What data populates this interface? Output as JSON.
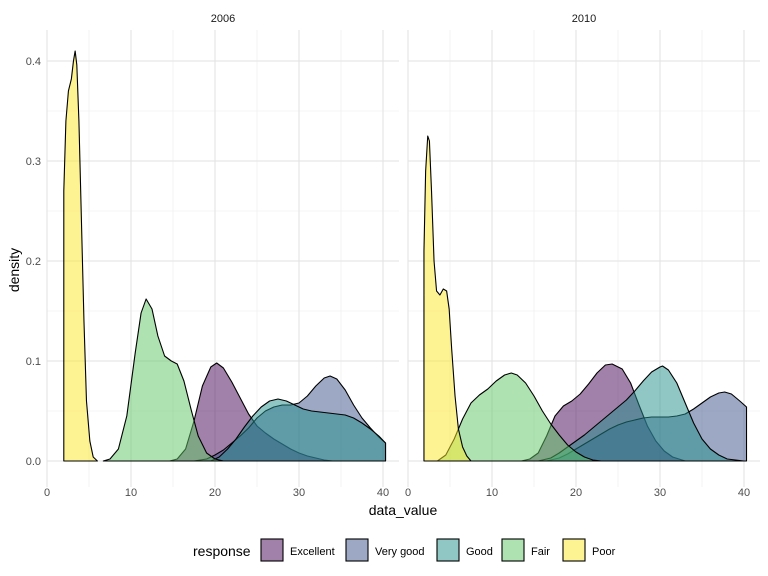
{
  "chart_data": {
    "type": "area",
    "subtype": "faceted density plot",
    "facets": [
      "2006",
      "2010"
    ],
    "xlabel": "data_value",
    "ylabel": "density",
    "xlim": [
      0,
      40
    ],
    "ylim": [
      0,
      0.43
    ],
    "x_ticks": [
      0,
      10,
      20,
      30,
      40
    ],
    "y_ticks": [
      0.0,
      0.1,
      0.2,
      0.3,
      0.4
    ],
    "x_tick_labels": [
      "0",
      "10",
      "20",
      "30",
      "40"
    ],
    "y_tick_labels": [
      "0.0",
      "0.1",
      "0.2",
      "0.3",
      "0.4"
    ],
    "grid": true,
    "legend": {
      "title": "response",
      "position": "bottom",
      "entries": [
        "Excellent",
        "Very good",
        "Good",
        "Fair",
        "Poor"
      ]
    },
    "colors": {
      "Excellent": "#440154",
      "Very good": "#3B528B",
      "Good": "#21908C",
      "Fair": "#5DC863",
      "Poor": "#FDE725"
    },
    "series": {
      "2006": [
        {
          "name": "Excellent",
          "points": [
            [
              14.6,
              0
            ],
            [
              15.5,
              0.002
            ],
            [
              16.5,
              0.012
            ],
            [
              17.5,
              0.04
            ],
            [
              18.5,
              0.075
            ],
            [
              19.5,
              0.094
            ],
            [
              20.2,
              0.098
            ],
            [
              21,
              0.093
            ],
            [
              22,
              0.079
            ],
            [
              23,
              0.063
            ],
            [
              24,
              0.047
            ],
            [
              25,
              0.035
            ],
            [
              26,
              0.028
            ],
            [
              27,
              0.022
            ],
            [
              28,
              0.017
            ],
            [
              29,
              0.012
            ],
            [
              30,
              0.008
            ],
            [
              31,
              0.005
            ],
            [
              32,
              0.003
            ],
            [
              33,
              0.001
            ],
            [
              34,
              0
            ]
          ]
        },
        {
          "name": "Very good",
          "points": [
            [
              17.5,
              0
            ],
            [
              19,
              0.002
            ],
            [
              20,
              0.006
            ],
            [
              21,
              0.011
            ],
            [
              22,
              0.018
            ],
            [
              23,
              0.025
            ],
            [
              24,
              0.033
            ],
            [
              25,
              0.043
            ],
            [
              26,
              0.05
            ],
            [
              27,
              0.054
            ],
            [
              28,
              0.056
            ],
            [
              29,
              0.056
            ],
            [
              30,
              0.058
            ],
            [
              31,
              0.065
            ],
            [
              32,
              0.075
            ],
            [
              33,
              0.083
            ],
            [
              33.7,
              0.085
            ],
            [
              34.5,
              0.082
            ],
            [
              35.5,
              0.071
            ],
            [
              36.5,
              0.056
            ],
            [
              37.5,
              0.043
            ],
            [
              38.5,
              0.033
            ],
            [
              39.5,
              0.024
            ],
            [
              40.3,
              0.018
            ],
            [
              40.3,
              0
            ]
          ]
        },
        {
          "name": "Good",
          "points": [
            [
              19.5,
              0
            ],
            [
              20.5,
              0.004
            ],
            [
              21.5,
              0.012
            ],
            [
              22.5,
              0.022
            ],
            [
              23.5,
              0.034
            ],
            [
              24.5,
              0.045
            ],
            [
              25.5,
              0.054
            ],
            [
              26.5,
              0.06
            ],
            [
              27.5,
              0.062
            ],
            [
              28.5,
              0.06
            ],
            [
              29.5,
              0.056
            ],
            [
              30.5,
              0.052
            ],
            [
              31.5,
              0.05
            ],
            [
              32.5,
              0.049
            ],
            [
              33.5,
              0.048
            ],
            [
              34.5,
              0.047
            ],
            [
              35.5,
              0.046
            ],
            [
              36.5,
              0.043
            ],
            [
              37.5,
              0.038
            ],
            [
              38.5,
              0.032
            ],
            [
              39.5,
              0.025
            ],
            [
              40.3,
              0.018
            ],
            [
              40.3,
              0
            ]
          ]
        },
        {
          "name": "Fair",
          "points": [
            [
              6.7,
              0
            ],
            [
              7.5,
              0.002
            ],
            [
              8.5,
              0.012
            ],
            [
              9.5,
              0.045
            ],
            [
              10.5,
              0.108
            ],
            [
              11.2,
              0.148
            ],
            [
              11.8,
              0.162
            ],
            [
              12.5,
              0.152
            ],
            [
              13.2,
              0.125
            ],
            [
              14,
              0.105
            ],
            [
              14.8,
              0.1
            ],
            [
              15.5,
              0.097
            ],
            [
              16.3,
              0.08
            ],
            [
              17.2,
              0.05
            ],
            [
              18,
              0.025
            ],
            [
              19,
              0.008
            ],
            [
              20,
              0.002
            ],
            [
              21,
              0
            ]
          ]
        },
        {
          "name": "Poor",
          "points": [
            [
              2,
              0
            ],
            [
              2,
              0.27
            ],
            [
              2.25,
              0.34
            ],
            [
              2.55,
              0.37
            ],
            [
              2.9,
              0.382
            ],
            [
              3.15,
              0.4
            ],
            [
              3.35,
              0.41
            ],
            [
              3.55,
              0.396
            ],
            [
              3.8,
              0.34
            ],
            [
              4.1,
              0.24
            ],
            [
              4.4,
              0.14
            ],
            [
              4.7,
              0.06
            ],
            [
              5.1,
              0.02
            ],
            [
              5.5,
              0.004
            ],
            [
              6,
              0
            ]
          ]
        }
      ],
      "2010": [
        {
          "name": "Excellent",
          "points": [
            [
              13.5,
              0
            ],
            [
              14.5,
              0.002
            ],
            [
              15.5,
              0.008
            ],
            [
              16.5,
              0.025
            ],
            [
              17.5,
              0.045
            ],
            [
              18.5,
              0.055
            ],
            [
              19.5,
              0.06
            ],
            [
              20.5,
              0.067
            ],
            [
              21.5,
              0.077
            ],
            [
              22.5,
              0.088
            ],
            [
              23.5,
              0.096
            ],
            [
              24.3,
              0.097
            ],
            [
              25.5,
              0.092
            ],
            [
              26.5,
              0.078
            ],
            [
              27.5,
              0.056
            ],
            [
              28.5,
              0.035
            ],
            [
              29.5,
              0.02
            ],
            [
              30.5,
              0.01
            ],
            [
              31.5,
              0.004
            ],
            [
              33,
              0
            ]
          ]
        },
        {
          "name": "Very good",
          "points": [
            [
              16.5,
              0
            ],
            [
              18,
              0.003
            ],
            [
              19,
              0.007
            ],
            [
              20,
              0.012
            ],
            [
              21,
              0.017
            ],
            [
              22,
              0.022
            ],
            [
              23,
              0.027
            ],
            [
              24,
              0.032
            ],
            [
              25,
              0.036
            ],
            [
              26,
              0.039
            ],
            [
              27,
              0.041
            ],
            [
              28,
              0.043
            ],
            [
              29,
              0.044
            ],
            [
              30,
              0.044
            ],
            [
              31,
              0.044
            ],
            [
              32,
              0.045
            ],
            [
              33,
              0.047
            ],
            [
              34,
              0.052
            ],
            [
              35,
              0.058
            ],
            [
              36,
              0.064
            ],
            [
              37,
              0.068
            ],
            [
              37.7,
              0.069
            ],
            [
              38.5,
              0.067
            ],
            [
              39.5,
              0.06
            ],
            [
              40.3,
              0.054
            ],
            [
              40.3,
              0
            ]
          ]
        },
        {
          "name": "Good",
          "points": [
            [
              15.5,
              0
            ],
            [
              17,
              0.003
            ],
            [
              18,
              0.008
            ],
            [
              19,
              0.014
            ],
            [
              20,
              0.02
            ],
            [
              21,
              0.026
            ],
            [
              22,
              0.033
            ],
            [
              23,
              0.04
            ],
            [
              24,
              0.047
            ],
            [
              25,
              0.054
            ],
            [
              26,
              0.061
            ],
            [
              27,
              0.07
            ],
            [
              28,
              0.08
            ],
            [
              29,
              0.089
            ],
            [
              30,
              0.094
            ],
            [
              30.3,
              0.095
            ],
            [
              31,
              0.091
            ],
            [
              32,
              0.078
            ],
            [
              33,
              0.058
            ],
            [
              34,
              0.038
            ],
            [
              35,
              0.022
            ],
            [
              36,
              0.012
            ],
            [
              37,
              0.006
            ],
            [
              38,
              0.002
            ],
            [
              40,
              0
            ]
          ]
        },
        {
          "name": "Fair",
          "points": [
            [
              3.5,
              0
            ],
            [
              4.5,
              0.006
            ],
            [
              5.5,
              0.022
            ],
            [
              6.5,
              0.042
            ],
            [
              7.5,
              0.058
            ],
            [
              8.5,
              0.066
            ],
            [
              9.5,
              0.072
            ],
            [
              10.5,
              0.08
            ],
            [
              11.5,
              0.086
            ],
            [
              12.3,
              0.088
            ],
            [
              13,
              0.086
            ],
            [
              14,
              0.078
            ],
            [
              15,
              0.065
            ],
            [
              16,
              0.05
            ],
            [
              17,
              0.037
            ],
            [
              18,
              0.026
            ],
            [
              19,
              0.016
            ],
            [
              20,
              0.009
            ],
            [
              21,
              0.004
            ],
            [
              22,
              0.001
            ],
            [
              23,
              0
            ]
          ]
        },
        {
          "name": "Poor",
          "points": [
            [
              1.9,
              0
            ],
            [
              1.9,
              0.21
            ],
            [
              2.1,
              0.29
            ],
            [
              2.35,
              0.325
            ],
            [
              2.55,
              0.32
            ],
            [
              2.8,
              0.27
            ],
            [
              3.1,
              0.2
            ],
            [
              3.4,
              0.17
            ],
            [
              3.8,
              0.166
            ],
            [
              4.2,
              0.172
            ],
            [
              4.6,
              0.17
            ],
            [
              4.9,
              0.152
            ],
            [
              5.2,
              0.112
            ],
            [
              5.6,
              0.065
            ],
            [
              6,
              0.032
            ],
            [
              6.5,
              0.014
            ],
            [
              7,
              0.005
            ],
            [
              7.5,
              0
            ]
          ]
        }
      ]
    }
  }
}
